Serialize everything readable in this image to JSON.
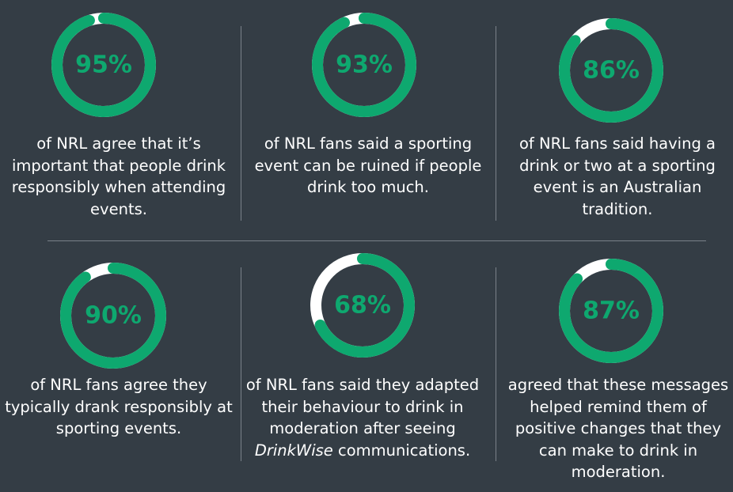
{
  "colors": {
    "background": "#343d45",
    "ring_fill": "#0ea86f",
    "ring_track": "#ffffff",
    "text": "#ffffff",
    "divider": "#7a8189"
  },
  "chart_data": {
    "type": "donut-stats",
    "items": [
      {
        "value": 95,
        "label": "95%",
        "lines": [
          "of NRL agree that it’s",
          "important that people drink",
          "responsibly when attending",
          "events."
        ]
      },
      {
        "value": 93,
        "label": "93%",
        "lines": [
          "of NRL fans said a sporting",
          "event can be ruined if people",
          "drink too much."
        ]
      },
      {
        "value": 86,
        "label": "86%",
        "lines": [
          "of NRL fans said having a",
          "drink or two at a sporting",
          "event is an Australian",
          "tradition."
        ]
      },
      {
        "value": 90,
        "label": "90%",
        "lines": [
          "of NRL fans agree they",
          "typically drank responsibly at",
          "sporting events."
        ]
      },
      {
        "value": 68,
        "label": "68%",
        "lines": [
          "of NRL fans said they adapted",
          "their behaviour to drink in",
          "moderation after seeing"
        ],
        "emphasis": "DrinkWise",
        "after_emphasis": " communications."
      },
      {
        "value": 87,
        "label": "87%",
        "lines": [
          "agreed that these messages",
          "helped remind them of",
          "positive changes that they",
          "can make to drink in",
          "moderation."
        ]
      }
    ]
  }
}
